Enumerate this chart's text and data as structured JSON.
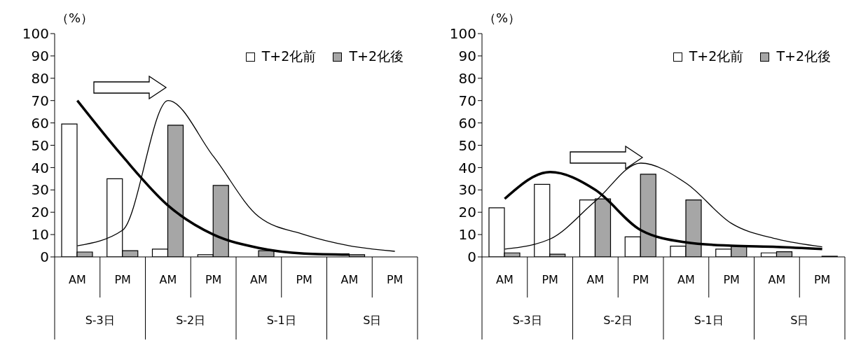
{
  "chart_data": [
    {
      "type": "bar",
      "ylabel": "（%）",
      "categories": [
        "AM",
        "PM",
        "AM",
        "PM",
        "AM",
        "PM",
        "AM",
        "PM"
      ],
      "annotations": [
        "S-3日",
        "S-2日",
        "S-1日",
        "S日"
      ],
      "ylim": [
        0,
        100
      ],
      "yticks": [
        0,
        10,
        20,
        30,
        40,
        50,
        60,
        70,
        80,
        90,
        100
      ],
      "legend": "top right",
      "series": [
        {
          "name": "T+2化前",
          "color": "#ffffff",
          "values": [
            59.5,
            35,
            3.5,
            1,
            null,
            null,
            0,
            0
          ]
        },
        {
          "name": "T+2化後",
          "color": "#a6a6a6",
          "values": [
            2.2,
            2.8,
            59,
            32,
            2.8,
            null,
            1,
            0
          ]
        },
        {
          "type": "line",
          "color": "#000000",
          "values": [
            70,
            45,
            23,
            10,
            4,
            1.5,
            1,
            null
          ]
        },
        {
          "type": "line",
          "color": "#000000",
          "values": [
            5,
            12,
            70,
            45,
            18,
            10,
            5,
            2.5
          ]
        }
      ]
    },
    {
      "type": "bar",
      "ylabel": "（%）",
      "categories": [
        "AM",
        "PM",
        "AM",
        "PM",
        "AM",
        "PM",
        "AM",
        "PM"
      ],
      "annotations": [
        "S-3日",
        "S-2日",
        "S-1日",
        "S日"
      ],
      "ylim": [
        0,
        100
      ],
      "yticks": [
        0,
        10,
        20,
        30,
        40,
        50,
        60,
        70,
        80,
        90,
        100
      ],
      "legend": "top right",
      "series": [
        {
          "name": "T+2化前",
          "color": "#ffffff",
          "values": [
            22,
            32.5,
            25.5,
            9,
            4.8,
            3.5,
            1.8,
            null
          ]
        },
        {
          "name": "T+2化後",
          "color": "#a6a6a6",
          "values": [
            1.8,
            1.2,
            26,
            37,
            25.5,
            5,
            2.3,
            0.3
          ]
        },
        {
          "type": "line",
          "color": "#000000",
          "values": [
            26,
            38,
            30,
            12,
            6.5,
            5,
            4.5,
            3.5
          ]
        },
        {
          "type": "line",
          "color": "#000000",
          "values": [
            3.5,
            8,
            25,
            42,
            33,
            15,
            8,
            4.5
          ]
        }
      ]
    }
  ]
}
